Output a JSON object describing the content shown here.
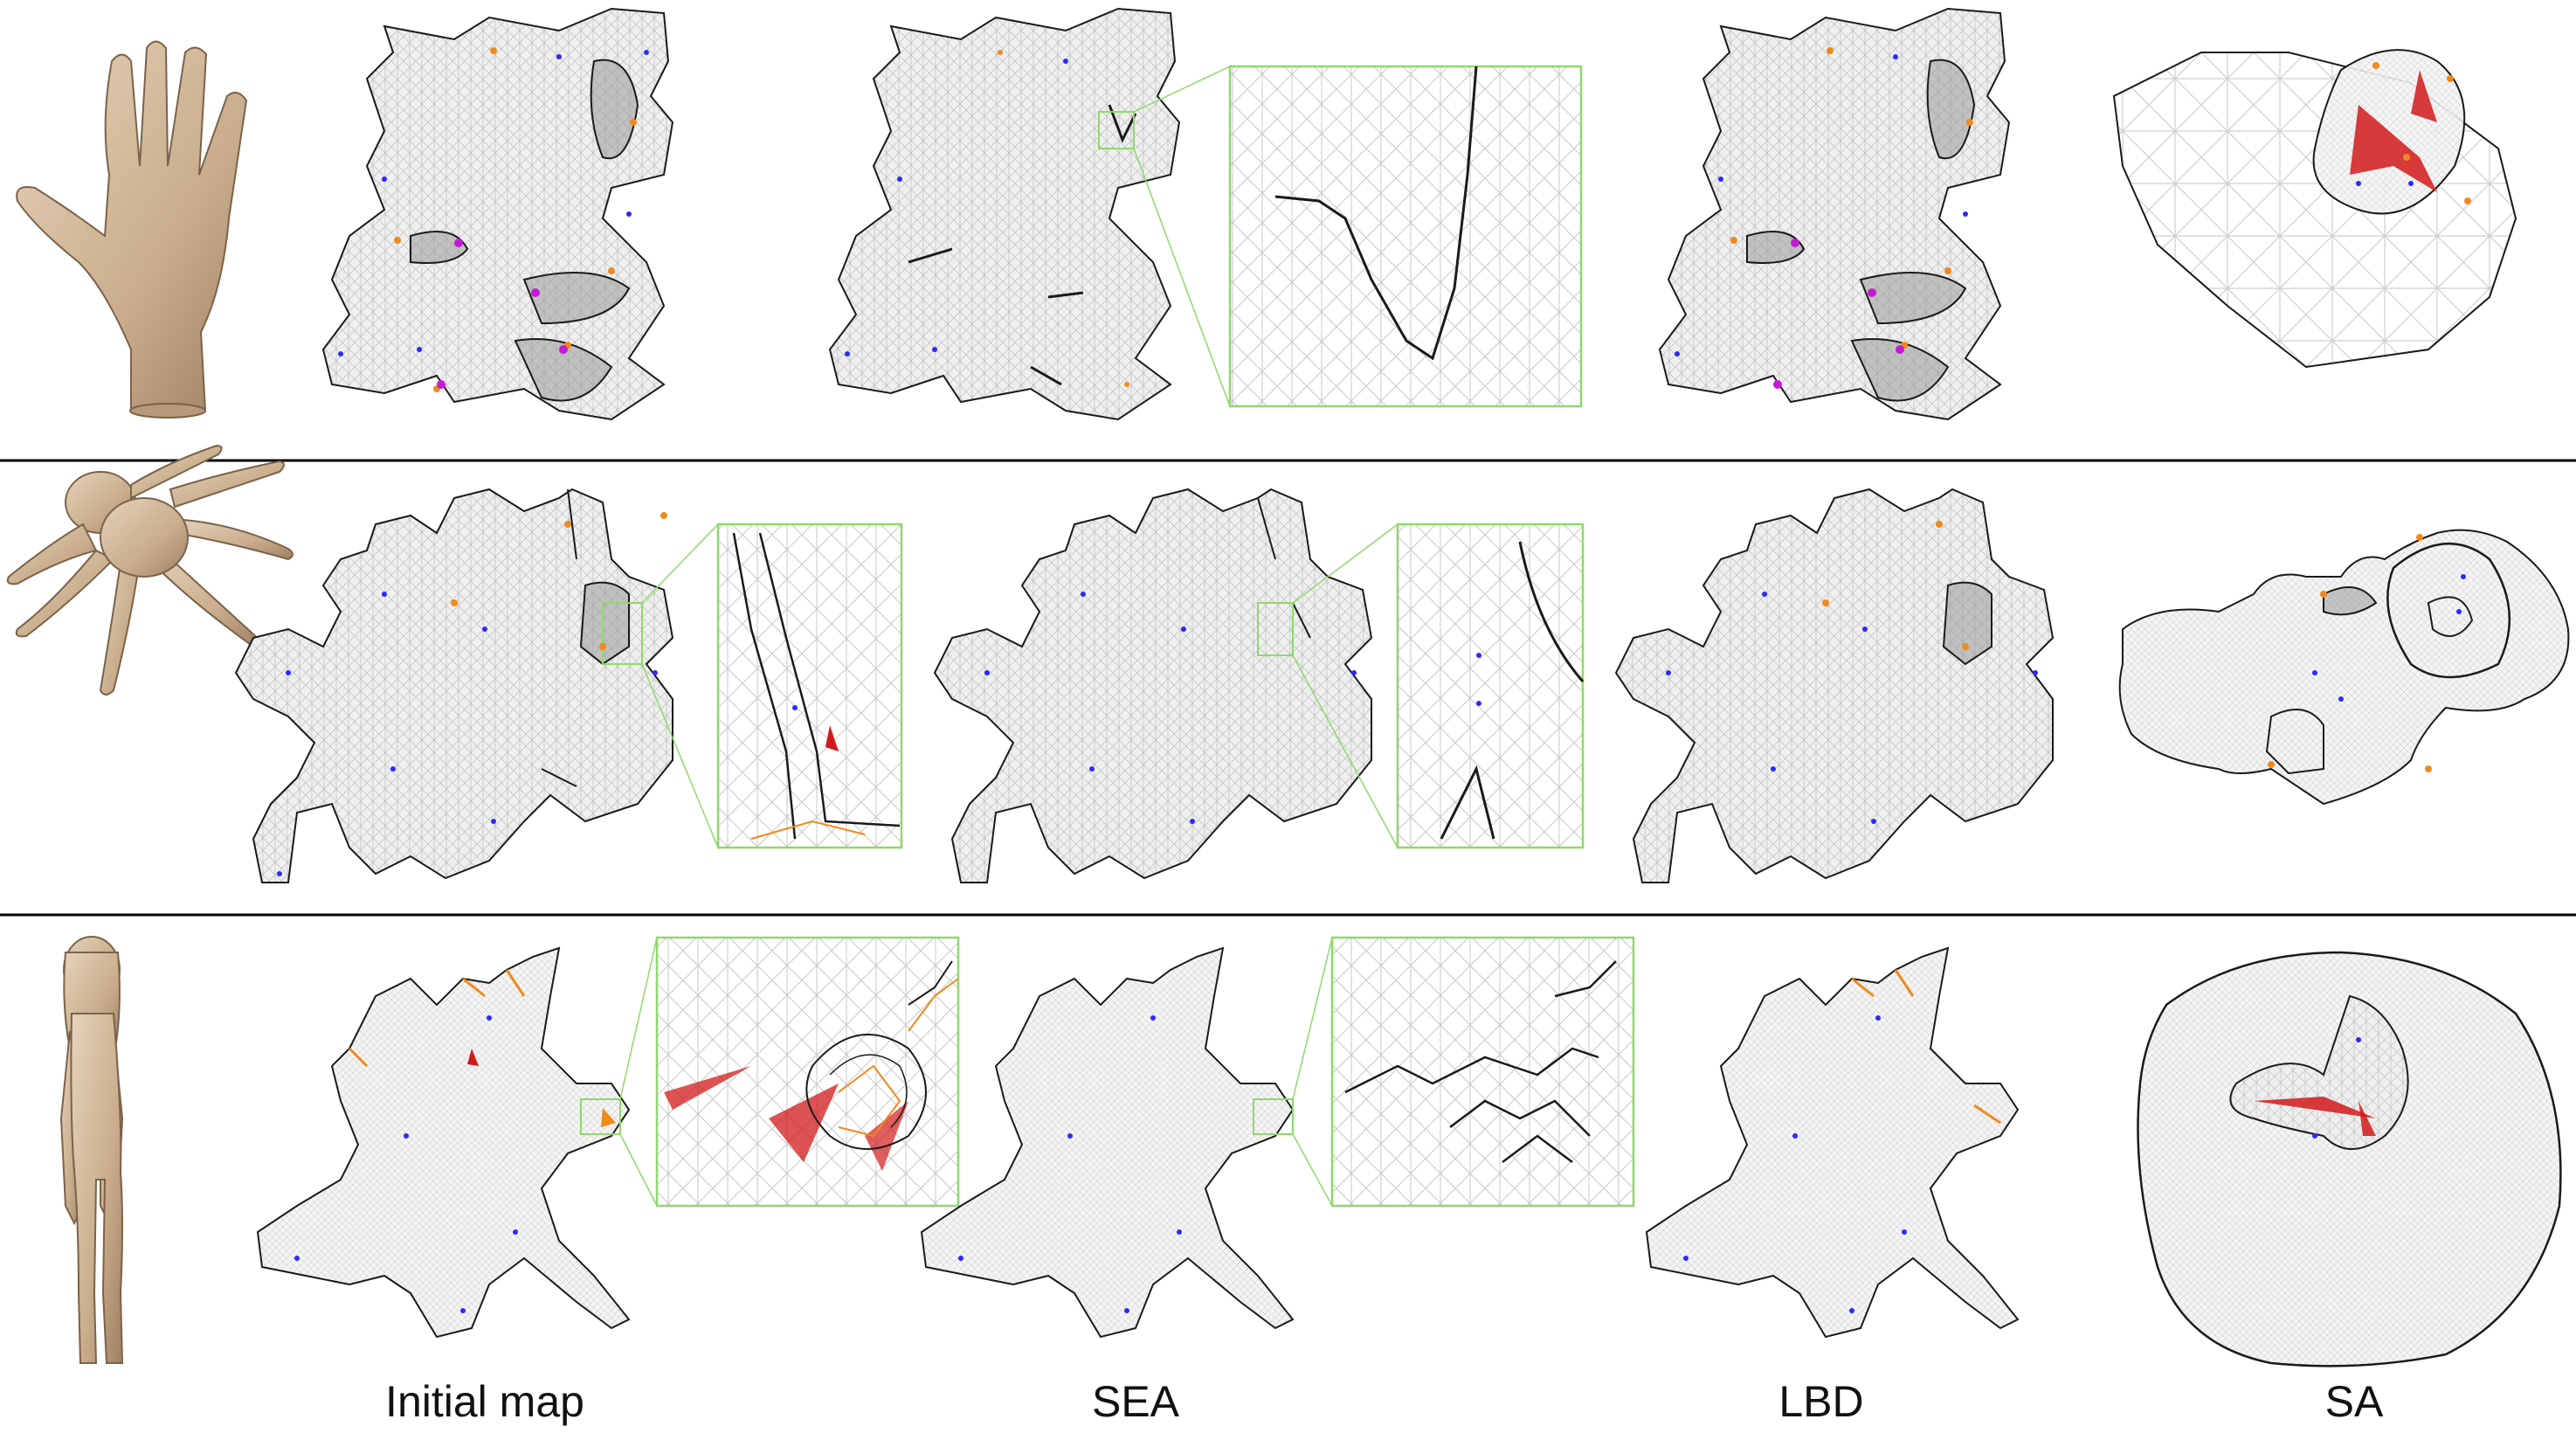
{
  "figure": {
    "column_labels": {
      "initial_map": "Initial map",
      "sea": "SEA",
      "lbd": "LBD",
      "sa": "SA"
    },
    "rows": [
      {
        "model": "hand"
      },
      {
        "model": "octopus"
      },
      {
        "model": "human-figure"
      }
    ],
    "colors": {
      "mesh_fill": "#ededed",
      "mesh_line": "#b8b8b8",
      "boundary": "#1a1a1a",
      "zoom_frame": "#8fd86a",
      "foldover": "#d11a1a",
      "cone_orange": "#f08a1c",
      "cone_blue": "#2a2aff",
      "cone_magenta": "#c21bd6",
      "skin": "#d6bfa3"
    }
  }
}
